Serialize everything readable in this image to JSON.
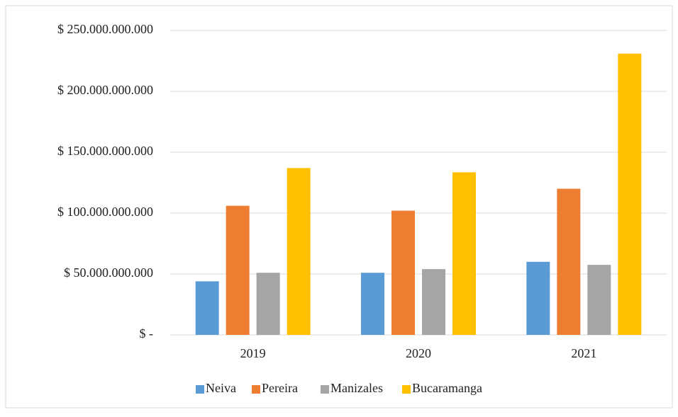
{
  "chart_data": {
    "type": "bar",
    "categories": [
      "2019",
      "2020",
      "2021"
    ],
    "series": [
      {
        "name": "Neiva",
        "color": "#5b9bd5",
        "values": [
          44000000000,
          51000000000,
          60000000000
        ]
      },
      {
        "name": "Pereira",
        "color": "#ed7d31",
        "values": [
          106000000000,
          102000000000,
          120000000000
        ]
      },
      {
        "name": "Manizales",
        "color": "#a5a5a5",
        "values": [
          51000000000,
          54000000000,
          57500000000
        ]
      },
      {
        "name": "Bucaramanga",
        "color": "#ffc000",
        "values": [
          137000000000,
          133500000000,
          231000000000
        ]
      }
    ],
    "ylim": [
      0,
      250000000000
    ],
    "yticks": [
      {
        "value": 0,
        "label": "$ -"
      },
      {
        "value": 50000000000,
        "label": "$ 50.000.000.000"
      },
      {
        "value": 100000000000,
        "label": "$ 100.000.000.000"
      },
      {
        "value": 150000000000,
        "label": "$ 150.000.000.000"
      },
      {
        "value": 200000000000,
        "label": "$ 200.000.000.000"
      },
      {
        "value": 250000000000,
        "label": "$ 250.000.000.000"
      }
    ],
    "grid": true,
    "legend": "bottom"
  }
}
